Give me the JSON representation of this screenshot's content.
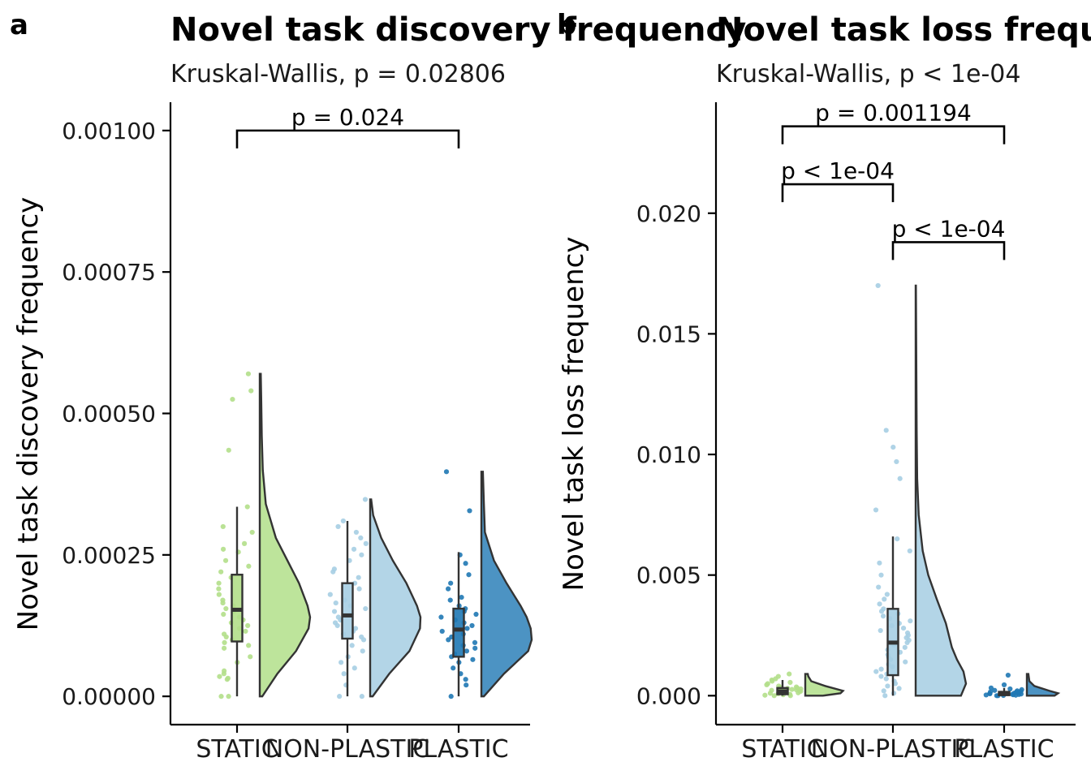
{
  "figure": {
    "colors": {
      "STATIC": "#b2df8a",
      "NON-PLASTIC": "#a6cee3",
      "PLASTIC": "#1f78b4"
    }
  },
  "chart_data": [
    {
      "panel": "a",
      "type": "raincloud",
      "title": "Novel task discovery frequency",
      "subtitle": "Kruskal-Wallis, p = 0.02806",
      "ylabel": "Novel task discovery frequency",
      "xlabel": "",
      "categories": [
        "STATIC",
        "NON-PLASTIC",
        "PLASTIC"
      ],
      "ylim": [
        -5e-05,
        0.00105
      ],
      "yticks": [
        0,
        0.00025,
        0.0005,
        0.00075,
        0.001
      ],
      "ytick_labels": [
        "0.00000",
        "0.00025",
        "0.00050",
        "0.00075",
        "0.00100"
      ],
      "groups": [
        {
          "name": "STATIC",
          "box": {
            "q1": 9.7e-05,
            "median": 0.000153,
            "q3": 0.000215,
            "whisker_low": 0.0,
            "whisker_high": 0.000335
          },
          "density": {
            "y": [
              0.0,
              4e-05,
              8e-05,
              0.00012,
              0.00014,
              0.00016,
              0.0002,
              0.00024,
              0.00028,
              0.00034,
              0.0004,
              0.00046,
              0.00052,
              0.00057
            ],
            "d": [
              0.05,
              0.35,
              0.72,
              0.97,
              1.0,
              0.95,
              0.78,
              0.55,
              0.32,
              0.12,
              0.06,
              0.04,
              0.03,
              0.02
            ]
          },
          "points": [
            0.0,
            0.0,
            3e-05,
            3.2e-05,
            3.5e-05,
            4e-05,
            4.5e-05,
            6e-05,
            7e-05,
            8.5e-05,
            9e-05,
            9.5e-05,
            0.0001,
            0.000105,
            0.00011,
            0.000115,
            0.00012,
            0.000125,
            0.00013,
            0.000135,
            0.00014,
            0.000145,
            0.00015,
            0.000155,
            0.00016,
            0.000165,
            0.00017,
            0.00018,
            0.00019,
            0.0002,
            0.00021,
            0.00022,
            0.00023,
            0.00024,
            0.000255,
            0.00026,
            0.00027,
            0.00029,
            0.0003,
            0.000335,
            0.000435,
            0.000525,
            0.00054,
            0.00057
          ]
        },
        {
          "name": "NON-PLASTIC",
          "box": {
            "q1": 0.000102,
            "median": 0.000143,
            "q3": 0.0002,
            "whisker_low": 0.0,
            "whisker_high": 0.00031
          },
          "density": {
            "y": [
              0.0,
              4e-05,
              8e-05,
              0.00012,
              0.00014,
              0.00016,
              0.0002,
              0.00024,
              0.00028,
              0.00032,
              0.000348
            ],
            "d": [
              0.05,
              0.38,
              0.78,
              0.99,
              1.0,
              0.93,
              0.72,
              0.45,
              0.22,
              0.06,
              0.02
            ]
          },
          "points": [
            0.0,
            0.0,
            2e-05,
            4e-05,
            5e-05,
            6e-05,
            7e-05,
            8e-05,
            9e-05,
            0.0001,
            0.000105,
            0.00011,
            0.000115,
            0.00012,
            0.000125,
            0.00013,
            0.000135,
            0.00014,
            0.000145,
            0.00015,
            0.000155,
            0.00016,
            0.000165,
            0.00017,
            0.00018,
            0.00019,
            0.0002,
            0.00021,
            0.00022,
            0.000225,
            0.00024,
            0.00025,
            0.00026,
            0.00027,
            0.00028,
            0.00029,
            0.0003,
            0.00031,
            0.000348
          ]
        },
        {
          "name": "PLASTIC",
          "box": {
            "q1": 7e-05,
            "median": 0.000118,
            "q3": 0.000155,
            "whisker_low": 0.0,
            "whisker_high": 0.000255
          },
          "density": {
            "y": [
              0.0,
              4e-05,
              8e-05,
              0.0001,
              0.00012,
              0.00014,
              0.00016,
              0.0002,
              0.00024,
              0.00029,
              0.00034,
              0.000397
            ],
            "d": [
              0.05,
              0.45,
              0.93,
              1.0,
              0.98,
              0.9,
              0.78,
              0.5,
              0.25,
              0.07,
              0.05,
              0.03
            ]
          },
          "points": [
            0.0,
            2e-05,
            3e-05,
            4e-05,
            5e-05,
            6e-05,
            6.5e-05,
            7e-05,
            7.5e-05,
            8e-05,
            8.5e-05,
            9e-05,
            9.5e-05,
            0.0001,
            0.000105,
            0.00011,
            0.000115,
            0.00012,
            0.000125,
            0.00013,
            0.000135,
            0.00014,
            0.000145,
            0.00015,
            0.000155,
            0.00016,
            0.00017,
            0.000175,
            0.00019,
            0.0002,
            0.000215,
            0.000235,
            0.00025,
            0.000328,
            0.000397
          ]
        }
      ],
      "comparisons": [
        {
          "groups": [
            "STATIC",
            "PLASTIC"
          ],
          "label": "p = 0.024",
          "y": 0.001
        }
      ]
    },
    {
      "panel": "b",
      "type": "raincloud",
      "title": "Novel task loss frequency",
      "subtitle": "Kruskal-Wallis, p < 1e-04",
      "ylabel": "Novel task loss frequency",
      "xlabel": "",
      "categories": [
        "STATIC",
        "NON-PLASTIC",
        "PLASTIC"
      ],
      "ylim": [
        -0.0012,
        0.0246
      ],
      "yticks": [
        0,
        0.005,
        0.01,
        0.015,
        0.02
      ],
      "ytick_labels": [
        "0.000",
        "0.005",
        "0.010",
        "0.015",
        "0.020"
      ],
      "groups": [
        {
          "name": "STATIC",
          "box": {
            "q1": 6e-05,
            "median": 0.00018,
            "q3": 0.00032,
            "whisker_low": 0.0,
            "whisker_high": 0.00065
          },
          "density": {
            "y": [
              0.0,
              0.0001,
              0.0002,
              0.0004,
              0.0006,
              0.0008,
              0.0009
            ],
            "d": [
              0.35,
              0.7,
              0.75,
              0.4,
              0.12,
              0.06,
              0.05
            ]
          },
          "points": [
            0.0,
            0.0,
            2e-05,
            4e-05,
            6e-05,
            8e-05,
            0.0001,
            0.00012,
            0.00014,
            0.00016,
            0.00018,
            0.0002,
            0.00022,
            0.00024,
            0.00026,
            0.00028,
            0.0003,
            0.00032,
            0.00034,
            0.00036,
            0.0004,
            0.00045,
            0.0005,
            0.00055,
            0.0006,
            0.00065,
            0.0007,
            0.0008,
            0.0009
          ]
        },
        {
          "name": "NON-PLASTIC",
          "box": {
            "q1": 0.00085,
            "median": 0.0022,
            "q3": 0.0036,
            "whisker_low": 0.0,
            "whisker_high": 0.0066
          },
          "density": {
            "y": [
              0.0,
              0.0005,
              0.001,
              0.0015,
              0.002,
              0.003,
              0.004,
              0.005,
              0.006,
              0.0075,
              0.009,
              0.011,
              0.013,
              0.015,
              0.017
            ],
            "d": [
              0.9,
              1.0,
              0.95,
              0.82,
              0.72,
              0.6,
              0.42,
              0.25,
              0.14,
              0.06,
              0.03,
              0.02,
              0.015,
              0.01,
              0.005
            ]
          },
          "points": [
            0.0,
            0.0001,
            0.0002,
            0.0003,
            0.0004,
            0.0005,
            0.0006,
            0.0007,
            0.0008,
            0.0009,
            0.001,
            0.0011,
            0.0012,
            0.0013,
            0.0014,
            0.0015,
            0.0016,
            0.0017,
            0.0018,
            0.0019,
            0.002,
            0.0021,
            0.0022,
            0.0023,
            0.0024,
            0.0025,
            0.0026,
            0.0027,
            0.0028,
            0.0029,
            0.003,
            0.0031,
            0.0032,
            0.0033,
            0.0034,
            0.0035,
            0.0036,
            0.0038,
            0.004,
            0.0042,
            0.0045,
            0.005,
            0.0055,
            0.006,
            0.0065,
            0.0077,
            0.009,
            0.0097,
            0.0103,
            0.011,
            0.017
          ]
        },
        {
          "name": "PLASTIC",
          "box": {
            "q1": 2e-05,
            "median": 8e-05,
            "q3": 0.00016,
            "whisker_low": 0.0,
            "whisker_high": 0.00032
          },
          "density": {
            "y": [
              0.0,
              0.0001,
              0.0002,
              0.0004,
              0.0006,
              0.0009
            ],
            "d": [
              0.55,
              0.62,
              0.45,
              0.15,
              0.05,
              0.03
            ]
          },
          "points": [
            0.0,
            0.0,
            1e-05,
            2e-05,
            3e-05,
            4e-05,
            5e-05,
            6e-05,
            7e-05,
            8e-05,
            9e-05,
            0.0001,
            0.00011,
            0.00012,
            0.00013,
            0.00014,
            0.00015,
            0.00016,
            0.00018,
            0.0002,
            0.00022,
            0.00025,
            0.00028,
            0.00032,
            0.00045,
            0.00085
          ]
        }
      ],
      "comparisons": [
        {
          "groups": [
            "STATIC",
            "PLASTIC"
          ],
          "label": "p = 0.001194",
          "y": 0.0236
        },
        {
          "groups": [
            "STATIC",
            "NON-PLASTIC"
          ],
          "label": "p < 1e-04",
          "y": 0.0212
        },
        {
          "groups": [
            "NON-PLASTIC",
            "PLASTIC"
          ],
          "label": "p < 1e-04",
          "y": 0.0188
        }
      ]
    }
  ]
}
